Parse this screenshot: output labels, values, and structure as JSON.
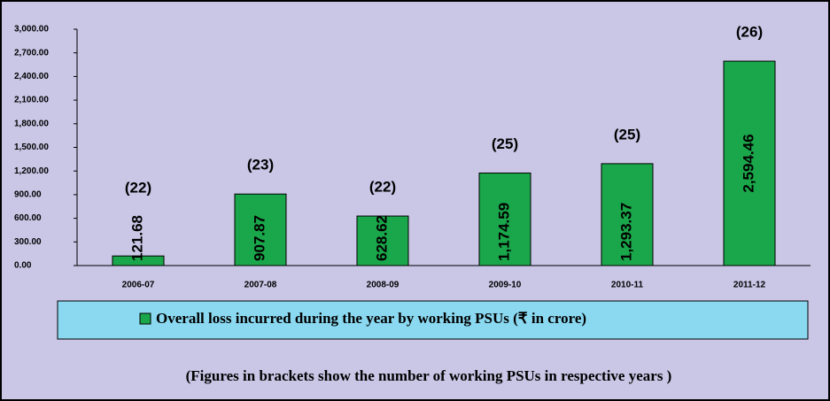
{
  "chart_data": {
    "type": "bar",
    "categories": [
      "2006-07",
      "2007-08",
      "2008-09",
      "2009-10",
      "2010-11",
      "2011-12"
    ],
    "series": [
      {
        "name": "Overall loss incurred during the year by working PSUs (₹ in crore)",
        "color": "#1aa64a",
        "values": [
          121.68,
          907.87,
          628.62,
          1174.59,
          1293.37,
          2594.46
        ],
        "value_labels": [
          "121.68",
          "907.87",
          "628.62",
          "1,174.59",
          "1,293.37",
          "2,594.46"
        ]
      }
    ],
    "annotations": [
      "(22)",
      "(23)",
      "(22)",
      "(25)",
      "(25)",
      "(26)"
    ],
    "ylim": [
      0,
      3000
    ],
    "yticks": [
      {
        "value": 0,
        "label": "0.00"
      },
      {
        "value": 300,
        "label": "300.00"
      },
      {
        "value": 600,
        "label": "600.00"
      },
      {
        "value": 900,
        "label": "900.00"
      },
      {
        "value": 1200,
        "label": "1,200.00"
      },
      {
        "value": 1500,
        "label": "1,500.00"
      },
      {
        "value": 1800,
        "label": "1,800.00"
      },
      {
        "value": 2100,
        "label": "2,100.00"
      },
      {
        "value": 2400,
        "label": "2,400.00"
      },
      {
        "value": 2700,
        "label": "2,700.00"
      },
      {
        "value": 3000,
        "label": "3,000.00"
      }
    ],
    "footnote": "(Figures in brackets show the number of working PSUs in respective years )"
  }
}
